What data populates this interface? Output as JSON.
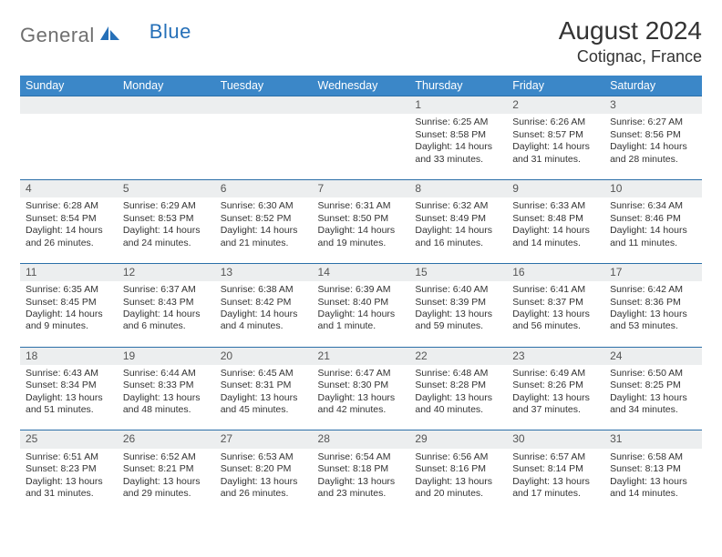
{
  "logo": {
    "part1": "General",
    "part2": "Blue"
  },
  "title": "August 2024",
  "location": "Cotignac, France",
  "colors": {
    "header_bg": "#3b87c8",
    "header_text": "#ffffff",
    "daynum_bg": "#eceeef",
    "row_border": "#2b6fa8",
    "text": "#333333",
    "logo_gray": "#6f6f6f",
    "logo_blue": "#2670b8"
  },
  "day_headers": [
    "Sunday",
    "Monday",
    "Tuesday",
    "Wednesday",
    "Thursday",
    "Friday",
    "Saturday"
  ],
  "weeks": [
    {
      "nums": [
        "",
        "",
        "",
        "",
        "1",
        "2",
        "3"
      ],
      "cells": [
        null,
        null,
        null,
        null,
        {
          "sunrise": "6:25 AM",
          "sunset": "8:58 PM",
          "daylight": "14 hours and 33 minutes."
        },
        {
          "sunrise": "6:26 AM",
          "sunset": "8:57 PM",
          "daylight": "14 hours and 31 minutes."
        },
        {
          "sunrise": "6:27 AM",
          "sunset": "8:56 PM",
          "daylight": "14 hours and 28 minutes."
        }
      ]
    },
    {
      "nums": [
        "4",
        "5",
        "6",
        "7",
        "8",
        "9",
        "10"
      ],
      "cells": [
        {
          "sunrise": "6:28 AM",
          "sunset": "8:54 PM",
          "daylight": "14 hours and 26 minutes."
        },
        {
          "sunrise": "6:29 AM",
          "sunset": "8:53 PM",
          "daylight": "14 hours and 24 minutes."
        },
        {
          "sunrise": "6:30 AM",
          "sunset": "8:52 PM",
          "daylight": "14 hours and 21 minutes."
        },
        {
          "sunrise": "6:31 AM",
          "sunset": "8:50 PM",
          "daylight": "14 hours and 19 minutes."
        },
        {
          "sunrise": "6:32 AM",
          "sunset": "8:49 PM",
          "daylight": "14 hours and 16 minutes."
        },
        {
          "sunrise": "6:33 AM",
          "sunset": "8:48 PM",
          "daylight": "14 hours and 14 minutes."
        },
        {
          "sunrise": "6:34 AM",
          "sunset": "8:46 PM",
          "daylight": "14 hours and 11 minutes."
        }
      ]
    },
    {
      "nums": [
        "11",
        "12",
        "13",
        "14",
        "15",
        "16",
        "17"
      ],
      "cells": [
        {
          "sunrise": "6:35 AM",
          "sunset": "8:45 PM",
          "daylight": "14 hours and 9 minutes."
        },
        {
          "sunrise": "6:37 AM",
          "sunset": "8:43 PM",
          "daylight": "14 hours and 6 minutes."
        },
        {
          "sunrise": "6:38 AM",
          "sunset": "8:42 PM",
          "daylight": "14 hours and 4 minutes."
        },
        {
          "sunrise": "6:39 AM",
          "sunset": "8:40 PM",
          "daylight": "14 hours and 1 minute."
        },
        {
          "sunrise": "6:40 AM",
          "sunset": "8:39 PM",
          "daylight": "13 hours and 59 minutes."
        },
        {
          "sunrise": "6:41 AM",
          "sunset": "8:37 PM",
          "daylight": "13 hours and 56 minutes."
        },
        {
          "sunrise": "6:42 AM",
          "sunset": "8:36 PM",
          "daylight": "13 hours and 53 minutes."
        }
      ]
    },
    {
      "nums": [
        "18",
        "19",
        "20",
        "21",
        "22",
        "23",
        "24"
      ],
      "cells": [
        {
          "sunrise": "6:43 AM",
          "sunset": "8:34 PM",
          "daylight": "13 hours and 51 minutes."
        },
        {
          "sunrise": "6:44 AM",
          "sunset": "8:33 PM",
          "daylight": "13 hours and 48 minutes."
        },
        {
          "sunrise": "6:45 AM",
          "sunset": "8:31 PM",
          "daylight": "13 hours and 45 minutes."
        },
        {
          "sunrise": "6:47 AM",
          "sunset": "8:30 PM",
          "daylight": "13 hours and 42 minutes."
        },
        {
          "sunrise": "6:48 AM",
          "sunset": "8:28 PM",
          "daylight": "13 hours and 40 minutes."
        },
        {
          "sunrise": "6:49 AM",
          "sunset": "8:26 PM",
          "daylight": "13 hours and 37 minutes."
        },
        {
          "sunrise": "6:50 AM",
          "sunset": "8:25 PM",
          "daylight": "13 hours and 34 minutes."
        }
      ]
    },
    {
      "nums": [
        "25",
        "26",
        "27",
        "28",
        "29",
        "30",
        "31"
      ],
      "cells": [
        {
          "sunrise": "6:51 AM",
          "sunset": "8:23 PM",
          "daylight": "13 hours and 31 minutes."
        },
        {
          "sunrise": "6:52 AM",
          "sunset": "8:21 PM",
          "daylight": "13 hours and 29 minutes."
        },
        {
          "sunrise": "6:53 AM",
          "sunset": "8:20 PM",
          "daylight": "13 hours and 26 minutes."
        },
        {
          "sunrise": "6:54 AM",
          "sunset": "8:18 PM",
          "daylight": "13 hours and 23 minutes."
        },
        {
          "sunrise": "6:56 AM",
          "sunset": "8:16 PM",
          "daylight": "13 hours and 20 minutes."
        },
        {
          "sunrise": "6:57 AM",
          "sunset": "8:14 PM",
          "daylight": "13 hours and 17 minutes."
        },
        {
          "sunrise": "6:58 AM",
          "sunset": "8:13 PM",
          "daylight": "13 hours and 14 minutes."
        }
      ]
    }
  ],
  "labels": {
    "sunrise": "Sunrise: ",
    "sunset": "Sunset: ",
    "daylight": "Daylight: "
  }
}
